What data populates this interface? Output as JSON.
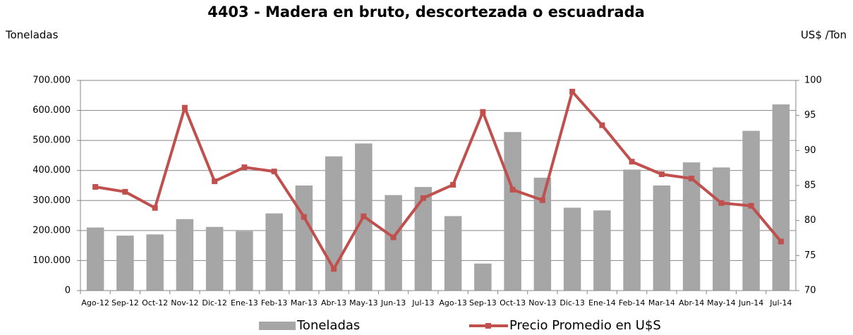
{
  "chart_data": {
    "type": "bar_line",
    "title": "4403 - Madera en bruto, descortezada o escuadrada",
    "y_label": "Toneladas",
    "y2_label": "US$ /Ton",
    "categories": [
      "Ago-12",
      "Sep-12",
      "Oct-12",
      "Nov-12",
      "Dic-12",
      "Ene-13",
      "Feb-13",
      "Mar-13",
      "Abr-13",
      "May-13",
      "Jun-13",
      "Jul-13",
      "Ago-13",
      "Sep-13",
      "Oct-13",
      "Nov-13",
      "Dic-13",
      "Ene-14",
      "Feb-14",
      "Mar-14",
      "Abr-14",
      "May-14",
      "Jun-14",
      "Jul-14"
    ],
    "series": [
      {
        "name": "Toneladas",
        "color": "#a6a6a6",
        "kind": "bar",
        "values": [
          210000,
          183000,
          187000,
          238000,
          212000,
          198000,
          257000,
          350000,
          447000,
          490000,
          318000,
          345000,
          248000,
          90000,
          528000,
          376000,
          276000,
          267000,
          403000,
          350000,
          427000,
          410000,
          532000,
          620000
        ]
      },
      {
        "name": "Precio Promedio en  U$S",
        "color": "#c0504d",
        "kind": "line",
        "axis": "y2",
        "values": [
          84.8,
          84.1,
          81.8,
          96.1,
          85.6,
          87.6,
          87.0,
          80.5,
          73.1,
          80.6,
          77.6,
          83.2,
          85.1,
          95.5,
          84.4,
          82.9,
          98.4,
          93.6,
          88.4,
          86.6,
          86.0,
          82.5,
          82.1,
          77.0
        ]
      }
    ],
    "ylim": [
      0,
      700000
    ],
    "yticks": [
      0,
      {
        "value": 100000,
        "label": "100.000"
      },
      {
        "value": 200000,
        "label": "200.000"
      },
      {
        "value": 300000,
        "label": "300.000"
      },
      {
        "value": 400000,
        "label": "400.000"
      },
      {
        "value": 500000,
        "label": "500.000"
      },
      {
        "value": 600000,
        "label": "600.000"
      },
      {
        "value": 700000,
        "label": "700.000"
      }
    ],
    "y2lim": [
      70,
      100
    ],
    "y2ticks": [
      70,
      75,
      80,
      85,
      90,
      95,
      100
    ],
    "grid": true,
    "legend": "bottom"
  }
}
